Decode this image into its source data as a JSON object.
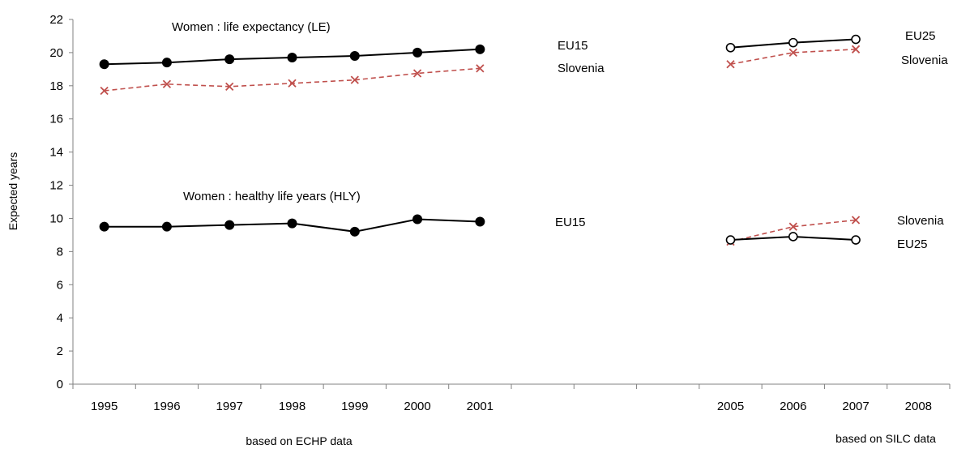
{
  "chart_data": {
    "type": "line",
    "title": "",
    "xlabel": "",
    "ylabel": "Expected years",
    "ylim": [
      0,
      22
    ],
    "yticks": [
      0,
      2,
      4,
      6,
      8,
      10,
      12,
      14,
      16,
      18,
      20,
      22
    ],
    "categories": [
      "1995",
      "1996",
      "1997",
      "1998",
      "1999",
      "2000",
      "2001",
      "",
      "",
      "",
      "2005",
      "2006",
      "2007",
      "2008"
    ],
    "period_labels": [
      "based on ECHP data",
      "based on SILC data"
    ],
    "annotations": [
      "Women : life expectancy (LE)",
      "Women :  healthy life years (HLY)",
      "EU15",
      "Slovenia",
      "EU25",
      "Slovenia",
      "EU15",
      "Slovenia",
      "EU25"
    ],
    "series": [
      {
        "key": "le_eu15",
        "x": [
          "1995",
          "1996",
          "1997",
          "1998",
          "1999",
          "2000",
          "2001"
        ],
        "values": [
          19.3,
          19.4,
          19.6,
          19.7,
          19.8,
          20.0,
          20.2
        ],
        "color": "#000000",
        "dash": false,
        "marker": "filled-circle"
      },
      {
        "key": "le_slovenia_echp",
        "x": [
          "1995",
          "1996",
          "1997",
          "1998",
          "1999",
          "2000",
          "2001"
        ],
        "values": [
          17.7,
          18.1,
          17.95,
          18.15,
          18.35,
          18.75,
          19.05
        ],
        "color": "#c0504d",
        "dash": true,
        "marker": "cross"
      },
      {
        "key": "le_eu25",
        "x": [
          "2005",
          "2006",
          "2007"
        ],
        "values": [
          20.3,
          20.6,
          20.8
        ],
        "color": "#000000",
        "dash": false,
        "marker": "open-circle"
      },
      {
        "key": "le_slovenia_silc",
        "x": [
          "2005",
          "2006",
          "2007"
        ],
        "values": [
          19.3,
          20.0,
          20.2
        ],
        "color": "#c0504d",
        "dash": true,
        "marker": "cross"
      },
      {
        "key": "hly_eu15",
        "x": [
          "1995",
          "1996",
          "1997",
          "1998",
          "1999",
          "2000",
          "2001"
        ],
        "values": [
          9.5,
          9.5,
          9.6,
          9.7,
          9.2,
          9.95,
          9.8
        ],
        "color": "#000000",
        "dash": false,
        "marker": "filled-circle"
      },
      {
        "key": "hly_slovenia",
        "x": [
          "2005",
          "2006",
          "2007"
        ],
        "values": [
          8.6,
          9.5,
          9.9
        ],
        "color": "#c0504d",
        "dash": true,
        "marker": "cross"
      },
      {
        "key": "hly_eu25",
        "x": [
          "2005",
          "2006",
          "2007"
        ],
        "values": [
          8.7,
          8.9,
          8.7
        ],
        "color": "#000000",
        "dash": false,
        "marker": "open-circle"
      }
    ]
  }
}
